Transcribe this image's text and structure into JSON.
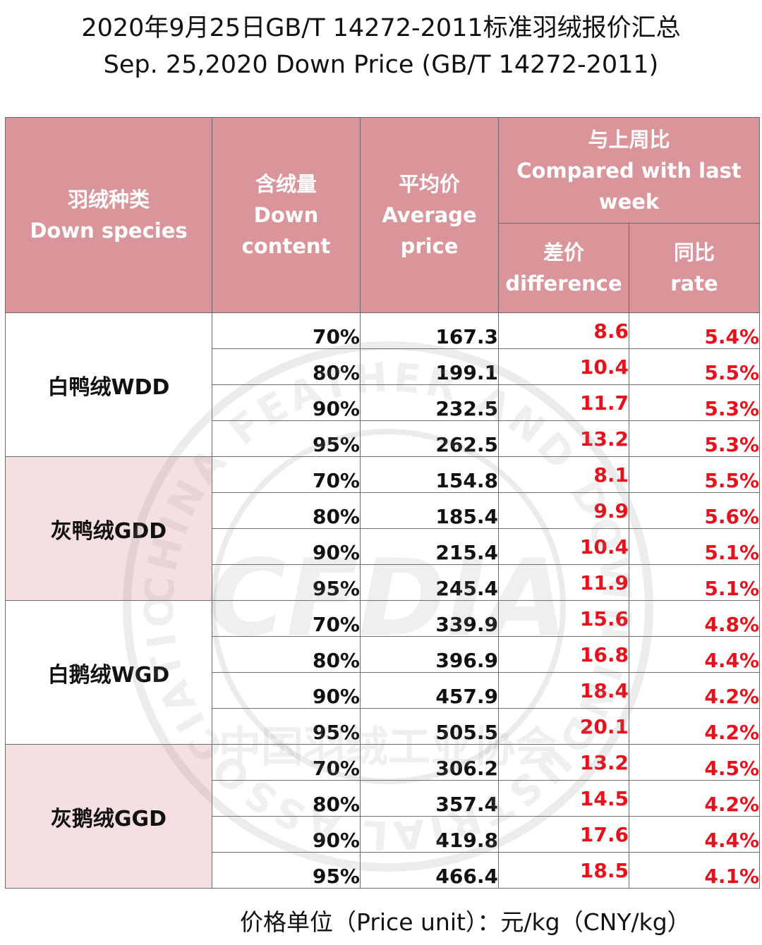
{
  "title": {
    "line1": "2020年9月25日GB/T 14272-2011标准羽绒报价汇总",
    "line2": "Sep. 25,2020 Down Price (GB/T 14272-2011)"
  },
  "headers": {
    "species_cn": "羽绒种类",
    "species_en": "Down species",
    "content_cn": "含绒量",
    "content_en1": "Down",
    "content_en2": "content",
    "price_cn": "平均价",
    "price_en1": "Average",
    "price_en2": "price",
    "compare_cn": "与上周比",
    "compare_en1": "Compared with last",
    "compare_en2": "week",
    "diff_cn": "差价",
    "diff_en": "difference",
    "rate_cn": "同比",
    "rate_en": "rate"
  },
  "groups": [
    {
      "species": "白鸭绒WDD",
      "shade": "white",
      "rows": [
        {
          "content": "70%",
          "price": "167.3",
          "difference": "8.6",
          "rate": "5.4%"
        },
        {
          "content": "80%",
          "price": "199.1",
          "difference": "10.4",
          "rate": "5.5%"
        },
        {
          "content": "90%",
          "price": "232.5",
          "difference": "11.7",
          "rate": "5.3%"
        },
        {
          "content": "95%",
          "price": "262.5",
          "difference": "13.2",
          "rate": "5.3%"
        }
      ]
    },
    {
      "species": "灰鸭绒GDD",
      "shade": "pink",
      "rows": [
        {
          "content": "70%",
          "price": "154.8",
          "difference": "8.1",
          "rate": "5.5%"
        },
        {
          "content": "80%",
          "price": "185.4",
          "difference": "9.9",
          "rate": "5.6%"
        },
        {
          "content": "90%",
          "price": "215.4",
          "difference": "10.4",
          "rate": "5.1%"
        },
        {
          "content": "95%",
          "price": "245.4",
          "difference": "11.9",
          "rate": "5.1%"
        }
      ]
    },
    {
      "species": "白鹅绒WGD",
      "shade": "white",
      "rows": [
        {
          "content": "70%",
          "price": "339.9",
          "difference": "15.6",
          "rate": "4.8%"
        },
        {
          "content": "80%",
          "price": "396.9",
          "difference": "16.8",
          "rate": "4.4%"
        },
        {
          "content": "90%",
          "price": "457.9",
          "difference": "18.4",
          "rate": "4.2%"
        },
        {
          "content": "95%",
          "price": "505.5",
          "difference": "20.1",
          "rate": "4.2%"
        }
      ]
    },
    {
      "species": "灰鹅绒GGD",
      "shade": "pink",
      "rows": [
        {
          "content": "70%",
          "price": "306.2",
          "difference": "13.2",
          "rate": "4.5%"
        },
        {
          "content": "80%",
          "price": "357.4",
          "difference": "14.5",
          "rate": "4.2%"
        },
        {
          "content": "90%",
          "price": "419.8",
          "difference": "17.6",
          "rate": "4.4%"
        },
        {
          "content": "95%",
          "price": "466.4",
          "difference": "18.5",
          "rate": "4.1%"
        }
      ]
    }
  ],
  "unit_note": "价格单位（Price unit）：元/kg（CNY/kg）",
  "watermark": {
    "icon": "association-seal-watermark",
    "outer_text": "CHINA FEATHER AND DOWN INDUSTRIAL ASSOCIATION",
    "center_text": "CFDIA",
    "bottom_text": "中国羽绒工业协会"
  }
}
